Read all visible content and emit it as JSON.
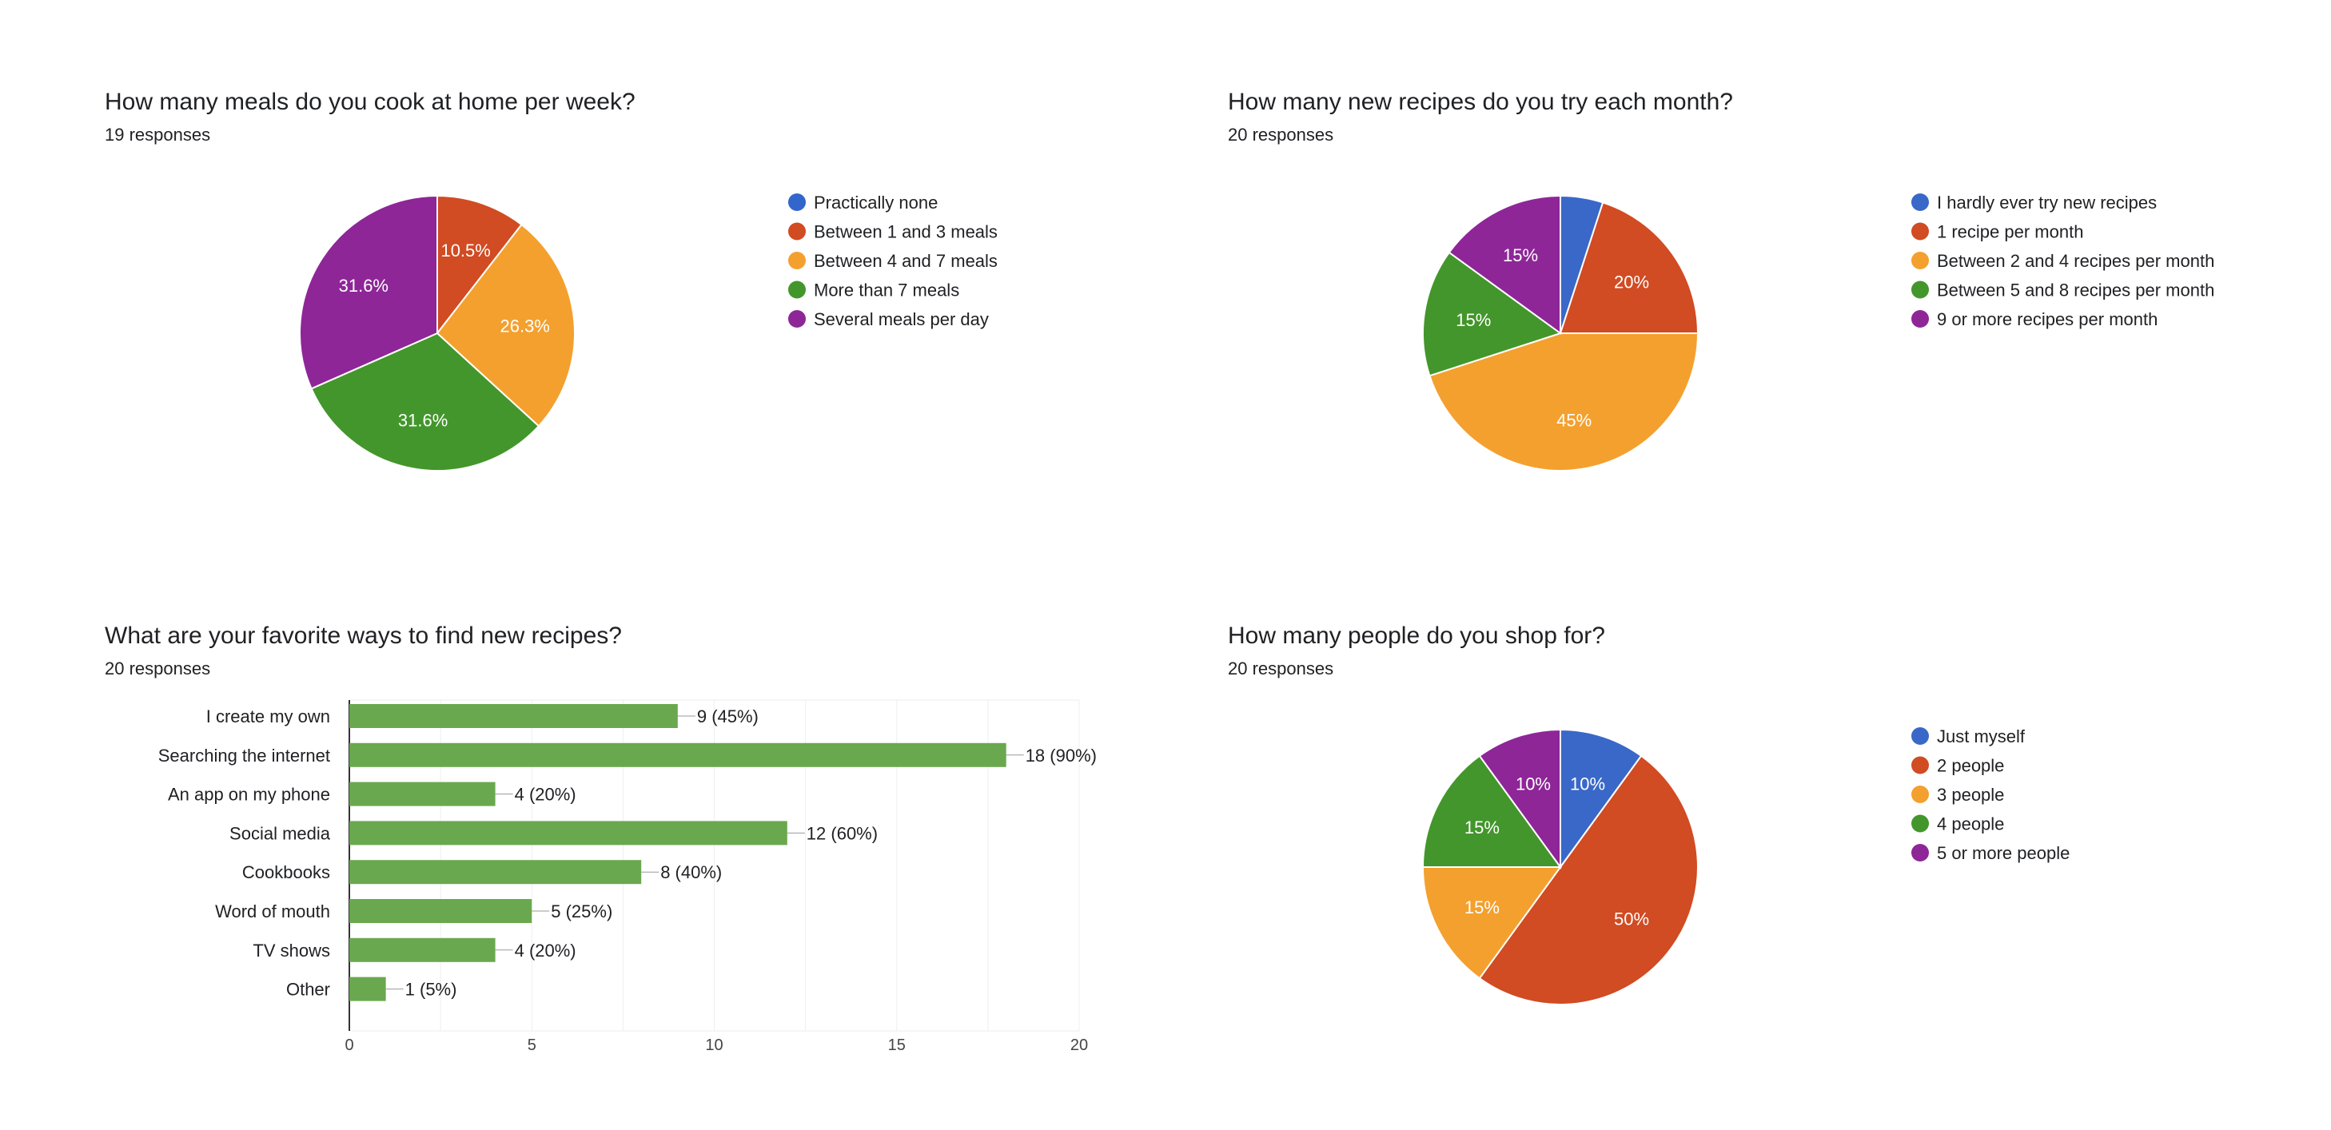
{
  "colors": {
    "blue": "#3366cc",
    "red": "#dc3912",
    "orange": "#ff9900",
    "green": "#109618",
    "purple": "#990099",
    "bar_green": "#6aa84f"
  },
  "chart_data": [
    {
      "type": "pie",
      "title": "How many meals do you cook at home per week?",
      "subtitle": "19 responses",
      "legend_position": "right",
      "slices": [
        {
          "label": "Practically none",
          "value": 0,
          "display": "",
          "color": "#3366cc"
        },
        {
          "label": "Between 1 and 3 meals",
          "value": 10.5,
          "display": "10.5%",
          "color": "#d14b23"
        },
        {
          "label": "Between 4 and 7 meals",
          "value": 26.3,
          "display": "26.3%",
          "color": "#f4a02e"
        },
        {
          "label": "More than 7 meals",
          "value": 31.6,
          "display": "31.6%",
          "color": "#43962b"
        },
        {
          "label": "Several meals per day",
          "value": 31.6,
          "display": "31.6%",
          "color": "#8e2698"
        }
      ]
    },
    {
      "type": "pie",
      "title": "How many new recipes do you try each month?",
      "subtitle": "20 responses",
      "legend_position": "right",
      "slices": [
        {
          "label": "I hardly ever try new recipes",
          "value": 5,
          "display": "",
          "color": "#3a68c9"
        },
        {
          "label": "1 recipe per month",
          "value": 20,
          "display": "20%",
          "color": "#d14b23"
        },
        {
          "label": "Between 2 and 4 recipes per month",
          "value": 45,
          "display": "45%",
          "color": "#f4a02e"
        },
        {
          "label": "Between 5 and 8 recipes per month",
          "value": 15,
          "display": "15%",
          "color": "#43962b"
        },
        {
          "label": "9 or more recipes per month",
          "value": 15,
          "display": "15%",
          "color": "#8e2698"
        }
      ]
    },
    {
      "type": "bar",
      "orientation": "horizontal",
      "title": "What are your favorite ways to find new recipes?",
      "subtitle": "20 responses",
      "categories": [
        "I create my own",
        "Searching the internet",
        "An app on my phone",
        "Social media",
        "Cookbooks",
        "Word of mouth",
        "TV shows",
        "Other"
      ],
      "values": [
        9,
        18,
        4,
        12,
        8,
        5,
        4,
        1
      ],
      "value_labels": [
        "9 (45%)",
        "18 (90%)",
        "4 (20%)",
        "12 (60%)",
        "8 (40%)",
        "5 (25%)",
        "4 (20%)",
        "1 (5%)"
      ],
      "xlim": [
        0,
        20
      ],
      "xticks": [
        0,
        5,
        10,
        15,
        20
      ],
      "grid": true,
      "color": "#6aa84f"
    },
    {
      "type": "pie",
      "title": "How many people do you shop for?",
      "subtitle": "20 responses",
      "legend_position": "right",
      "slices": [
        {
          "label": "Just myself",
          "value": 10,
          "display": "10%",
          "color": "#3a68c9"
        },
        {
          "label": "2 people",
          "value": 50,
          "display": "50%",
          "color": "#d14b23"
        },
        {
          "label": "3 people",
          "value": 15,
          "display": "15%",
          "color": "#f4a02e"
        },
        {
          "label": "4 people",
          "value": 15,
          "display": "15%",
          "color": "#43962b"
        },
        {
          "label": "5 or more people",
          "value": 10,
          "display": "10%",
          "color": "#8e2698"
        }
      ]
    }
  ]
}
